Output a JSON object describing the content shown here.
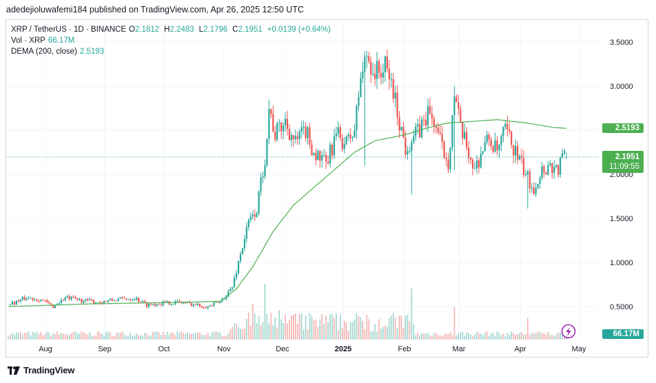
{
  "caption": "adedejioluwafemi184 published on TradingView.com, Apr 26, 2025 12:50 UTC",
  "legend": {
    "symbol": "XRP / TetherUS · 1D · BINANCE",
    "o_label": "O",
    "o_val": "2.1812",
    "h_label": "H",
    "h_val": "2.2483",
    "l_label": "L",
    "l_val": "2.1796",
    "c_label": "C",
    "c_val": "2.1951",
    "change": "+0.0139 (+0.64%)",
    "vol_label": "Vol · XRP",
    "vol_val": "66.17M",
    "dema_label": "DEMA (200, close)",
    "dema_val": "2.5193"
  },
  "badges": {
    "dema": "2.5193",
    "price": "2.1951",
    "countdown": "11:09:55",
    "volume": "66.17M"
  },
  "brand": "TradingView",
  "colors": {
    "up": "#26a69a",
    "down": "#ef5350",
    "dema": "#4caf50",
    "price_badge": "#4caf50",
    "vol_up": "#a5d8d2",
    "vol_down": "#f5b7b5",
    "grid": "#f0f3fa"
  },
  "icons": {
    "logo": "tradingview-logo-icon",
    "ideas": "lightning-icon"
  },
  "chart_data": {
    "type": "candlestick",
    "interval": "1D",
    "y_axis": {
      "ylim": [
        0.2,
        3.75
      ],
      "ticks": [
        "3.5000",
        "3.0000",
        "2.5000",
        "2.0000",
        "1.5000",
        "1.0000",
        "0.5000"
      ],
      "tick_values": [
        3.5,
        3.0,
        2.5,
        2.0,
        1.5,
        1.0,
        0.5
      ]
    },
    "x_axis": {
      "ticks": [
        "Aug",
        "Sep",
        "Oct",
        "Nov",
        "Dec",
        "2025",
        "Feb",
        "Mar",
        "Apr",
        "May"
      ],
      "bold": [
        "2025"
      ]
    },
    "current": {
      "open": 2.1812,
      "high": 2.2483,
      "low": 2.1796,
      "close": 2.1951,
      "volume": "66.17M",
      "dema": 2.5193
    },
    "price_path": [
      [
        0,
        0.52
      ],
      [
        9,
        0.6
      ],
      [
        16,
        0.58
      ],
      [
        22,
        0.5
      ],
      [
        28,
        0.6
      ],
      [
        36,
        0.57
      ],
      [
        45,
        0.55
      ],
      [
        54,
        0.58
      ],
      [
        62,
        0.6
      ],
      [
        68,
        0.52
      ],
      [
        76,
        0.54
      ],
      [
        84,
        0.55
      ],
      [
        92,
        0.52
      ],
      [
        98,
        0.5
      ],
      [
        104,
        0.55
      ],
      [
        110,
        0.72
      ],
      [
        114,
        1.1
      ],
      [
        118,
        1.45
      ],
      [
        122,
        1.6
      ],
      [
        126,
        2.2
      ],
      [
        128,
        2.75
      ],
      [
        131,
        2.45
      ],
      [
        136,
        2.6
      ],
      [
        141,
        2.35
      ],
      [
        146,
        2.5
      ],
      [
        150,
        2.25
      ],
      [
        156,
        2.1
      ],
      [
        161,
        2.45
      ],
      [
        166,
        2.35
      ],
      [
        170,
        2.5
      ],
      [
        173,
        3.1
      ],
      [
        176,
        3.35
      ],
      [
        180,
        3.15
      ],
      [
        185,
        3.2
      ],
      [
        188,
        3.05
      ],
      [
        192,
        2.6
      ],
      [
        195,
        2.3
      ],
      [
        198,
        2.4
      ],
      [
        202,
        2.5
      ],
      [
        206,
        2.7
      ],
      [
        209,
        2.6
      ],
      [
        213,
        2.3
      ],
      [
        216,
        2.15
      ],
      [
        219,
        2.9
      ],
      [
        222,
        2.5
      ],
      [
        226,
        2.25
      ],
      [
        229,
        2.05
      ],
      [
        233,
        2.3
      ],
      [
        236,
        2.4
      ],
      [
        240,
        2.25
      ],
      [
        244,
        2.5
      ],
      [
        248,
        2.3
      ],
      [
        252,
        2.1
      ],
      [
        255,
        1.95
      ],
      [
        258,
        1.85
      ],
      [
        262,
        2.05
      ],
      [
        266,
        2.1
      ],
      [
        270,
        2.05
      ],
      [
        272,
        2.2
      ],
      [
        274,
        2.195
      ]
    ],
    "dema_path": [
      [
        0,
        0.5
      ],
      [
        40,
        0.53
      ],
      [
        90,
        0.55
      ],
      [
        104,
        0.56
      ],
      [
        112,
        0.7
      ],
      [
        120,
        0.95
      ],
      [
        130,
        1.35
      ],
      [
        140,
        1.65
      ],
      [
        150,
        1.85
      ],
      [
        160,
        2.05
      ],
      [
        170,
        2.25
      ],
      [
        180,
        2.38
      ],
      [
        195,
        2.45
      ],
      [
        205,
        2.52
      ],
      [
        215,
        2.58
      ],
      [
        228,
        2.6
      ],
      [
        240,
        2.62
      ],
      [
        255,
        2.58
      ],
      [
        268,
        2.53
      ],
      [
        275,
        2.52
      ]
    ],
    "spikes": [
      {
        "day": 175,
        "low": 2.1,
        "high": 3.35
      },
      {
        "day": 198,
        "low": 1.77,
        "high": 2.3
      },
      {
        "day": 219,
        "low": 2.05,
        "high": 3.0
      },
      {
        "day": 255,
        "low": 1.61,
        "high": 2.05
      }
    ],
    "volume_peaks": [
      {
        "day": 120,
        "rel": 0.55
      },
      {
        "day": 126,
        "rel": 0.85
      },
      {
        "day": 133,
        "rel": 0.45
      },
      {
        "day": 176,
        "rel": 0.38
      },
      {
        "day": 198,
        "rel": 0.78
      },
      {
        "day": 219,
        "rel": 0.5
      },
      {
        "day": 255,
        "rel": 0.33
      }
    ]
  }
}
